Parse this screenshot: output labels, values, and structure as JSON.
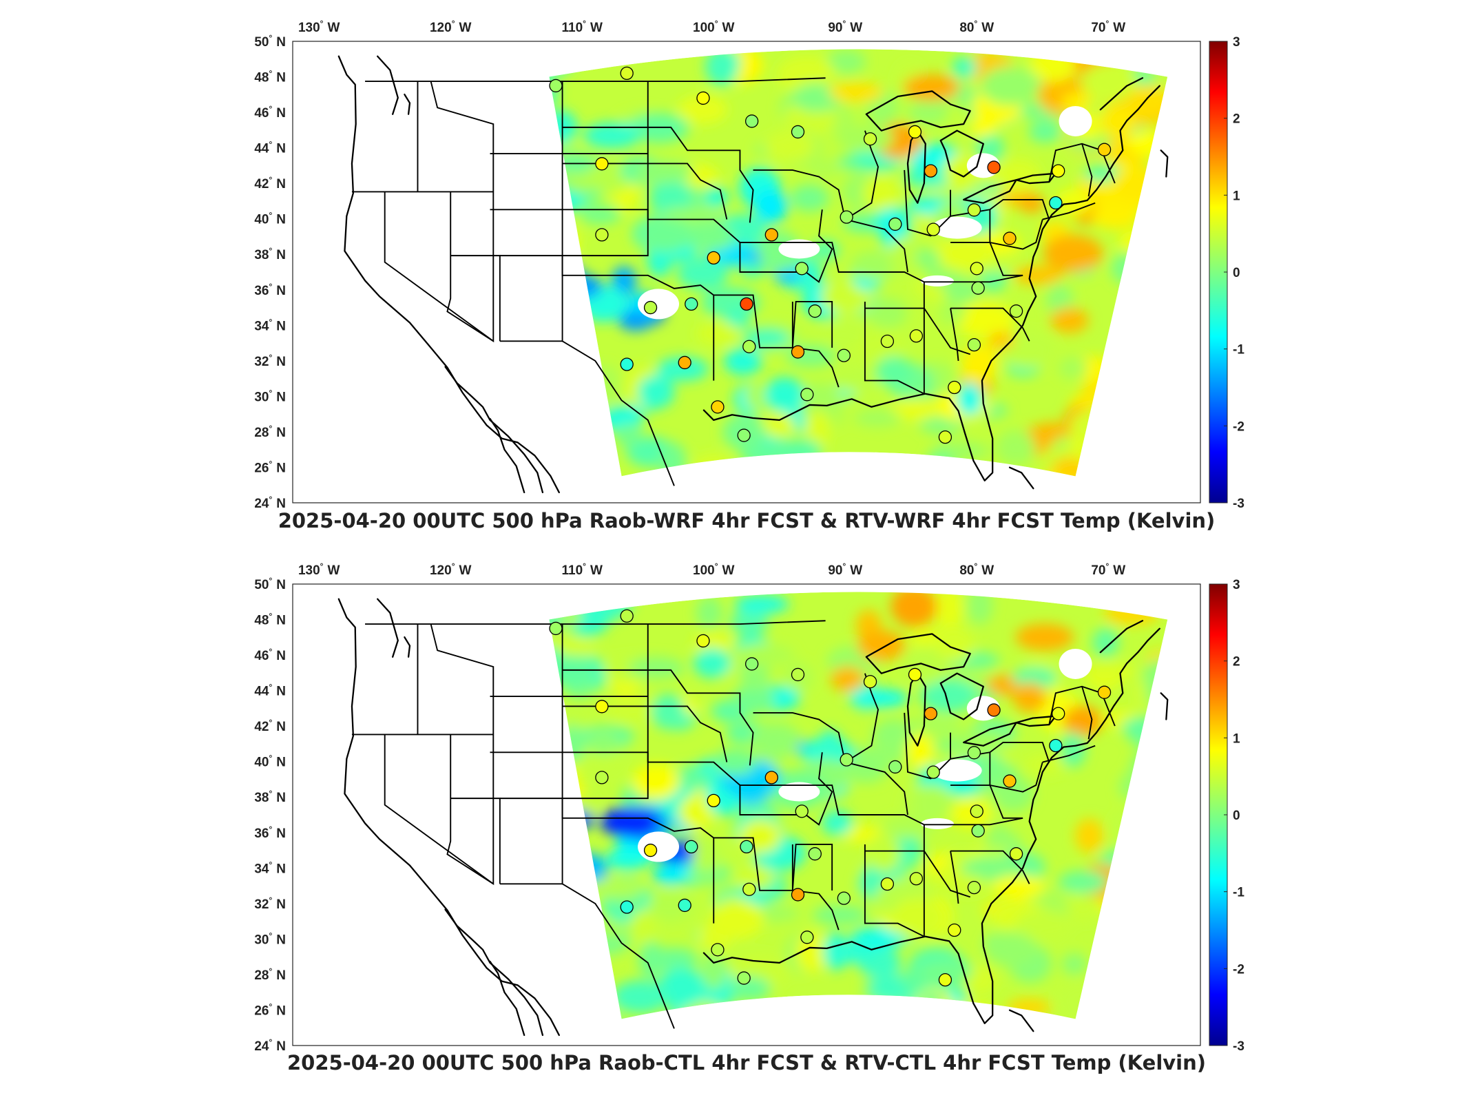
{
  "panels": [
    {
      "title": "2025-04-20 00UTC 500 hPa Raob-WRF 4hr FCST & RTV-WRF 4hr FCST Temp (Kelvin)",
      "stations": [
        {
          "lon": -112.0,
          "lat": 47.5,
          "value": 0.2
        },
        {
          "lon": -106.6,
          "lat": 48.2,
          "value": 0.6
        },
        {
          "lon": -100.8,
          "lat": 46.8,
          "value": 0.8
        },
        {
          "lon": -97.1,
          "lat": 45.5,
          "value": 0.1
        },
        {
          "lon": -93.6,
          "lat": 44.9,
          "value": 0.1
        },
        {
          "lon": -88.1,
          "lat": 44.5,
          "value": 0.5
        },
        {
          "lon": -84.7,
          "lat": 44.9,
          "value": 0.8
        },
        {
          "lon": -83.5,
          "lat": 42.7,
          "value": 1.4
        },
        {
          "lon": -78.7,
          "lat": 42.9,
          "value": 1.8
        },
        {
          "lon": -73.8,
          "lat": 42.7,
          "value": 0.8
        },
        {
          "lon": -70.3,
          "lat": 43.9,
          "value": 1.1
        },
        {
          "lon": -108.5,
          "lat": 43.1,
          "value": 0.9
        },
        {
          "lon": -108.5,
          "lat": 39.1,
          "value": 0.5
        },
        {
          "lon": -104.8,
          "lat": 35.0,
          "value": 0.4
        },
        {
          "lon": -101.7,
          "lat": 35.2,
          "value": -0.3
        },
        {
          "lon": -97.5,
          "lat": 35.2,
          "value": 1.9
        },
        {
          "lon": -97.3,
          "lat": 32.8,
          "value": 0.3
        },
        {
          "lon": -95.6,
          "lat": 39.1,
          "value": 1.3
        },
        {
          "lon": -100.0,
          "lat": 37.8,
          "value": 1.2
        },
        {
          "lon": -93.3,
          "lat": 37.2,
          "value": 0.2
        },
        {
          "lon": -92.3,
          "lat": 34.8,
          "value": 0.2
        },
        {
          "lon": -93.6,
          "lat": 32.5,
          "value": 1.4
        },
        {
          "lon": -89.9,
          "lat": 40.1,
          "value": 0.2
        },
        {
          "lon": -86.2,
          "lat": 39.7,
          "value": 0.1
        },
        {
          "lon": -83.3,
          "lat": 39.4,
          "value": 0.6
        },
        {
          "lon": -80.2,
          "lat": 40.5,
          "value": 0.5
        },
        {
          "lon": -77.5,
          "lat": 38.9,
          "value": 1.2
        },
        {
          "lon": -80.0,
          "lat": 37.2,
          "value": 0.6
        },
        {
          "lon": -79.9,
          "lat": 36.1,
          "value": 0.2
        },
        {
          "lon": -77.0,
          "lat": 34.8,
          "value": 0.4
        },
        {
          "lon": -80.2,
          "lat": 32.9,
          "value": 0.3
        },
        {
          "lon": -84.6,
          "lat": 33.4,
          "value": 0.6
        },
        {
          "lon": -86.8,
          "lat": 33.1,
          "value": 0.5
        },
        {
          "lon": -90.1,
          "lat": 32.3,
          "value": 0.2
        },
        {
          "lon": -92.9,
          "lat": 30.1,
          "value": 0.2
        },
        {
          "lon": -97.7,
          "lat": 27.8,
          "value": 0.1
        },
        {
          "lon": -99.7,
          "lat": 29.4,
          "value": 1.1
        },
        {
          "lon": -102.2,
          "lat": 31.9,
          "value": 1.3
        },
        {
          "lon": -106.6,
          "lat": 31.8,
          "value": -0.6
        },
        {
          "lon": -74.0,
          "lat": 40.9,
          "value": -0.6
        },
        {
          "lon": -81.7,
          "lat": 30.5,
          "value": 0.7
        },
        {
          "lon": -82.4,
          "lat": 27.7,
          "value": 0.6
        }
      ]
    },
    {
      "title": "2025-04-20 00UTC 500 hPa Raob-CTL 4hr FCST & RTV-CTL 4hr FCST Temp (Kelvin)",
      "stations": [
        {
          "lon": -112.0,
          "lat": 47.5,
          "value": 0.2
        },
        {
          "lon": -106.6,
          "lat": 48.2,
          "value": 0.4
        },
        {
          "lon": -100.8,
          "lat": 46.8,
          "value": 0.7
        },
        {
          "lon": -97.1,
          "lat": 45.5,
          "value": 0.1
        },
        {
          "lon": -93.6,
          "lat": 44.9,
          "value": 0.4
        },
        {
          "lon": -88.1,
          "lat": 44.5,
          "value": 0.6
        },
        {
          "lon": -84.7,
          "lat": 44.9,
          "value": 0.8
        },
        {
          "lon": -83.5,
          "lat": 42.7,
          "value": 1.4
        },
        {
          "lon": -78.7,
          "lat": 42.9,
          "value": 1.6
        },
        {
          "lon": -73.8,
          "lat": 42.7,
          "value": 0.7
        },
        {
          "lon": -70.3,
          "lat": 43.9,
          "value": 1.1
        },
        {
          "lon": -108.5,
          "lat": 43.1,
          "value": 0.8
        },
        {
          "lon": -108.5,
          "lat": 39.1,
          "value": 0.4
        },
        {
          "lon": -104.8,
          "lat": 35.0,
          "value": 0.9
        },
        {
          "lon": -101.7,
          "lat": 35.2,
          "value": -0.3
        },
        {
          "lon": -97.5,
          "lat": 35.2,
          "value": -0.2
        },
        {
          "lon": -97.3,
          "lat": 32.8,
          "value": 0.5
        },
        {
          "lon": -95.6,
          "lat": 39.1,
          "value": 1.3
        },
        {
          "lon": -100.0,
          "lat": 37.8,
          "value": 0.8
        },
        {
          "lon": -93.3,
          "lat": 37.2,
          "value": 0.4
        },
        {
          "lon": -92.3,
          "lat": 34.8,
          "value": 0.2
        },
        {
          "lon": -93.6,
          "lat": 32.5,
          "value": 1.4
        },
        {
          "lon": -89.9,
          "lat": 40.1,
          "value": 0.2
        },
        {
          "lon": -86.2,
          "lat": 39.7,
          "value": 0.1
        },
        {
          "lon": -83.3,
          "lat": 39.4,
          "value": 0.3
        },
        {
          "lon": -80.2,
          "lat": 40.5,
          "value": 0.2
        },
        {
          "lon": -77.5,
          "lat": 38.9,
          "value": 1.2
        },
        {
          "lon": -80.0,
          "lat": 37.2,
          "value": 0.5
        },
        {
          "lon": -79.9,
          "lat": 36.1,
          "value": 0.1
        },
        {
          "lon": -77.0,
          "lat": 34.8,
          "value": 0.6
        },
        {
          "lon": -80.2,
          "lat": 32.9,
          "value": 0.4
        },
        {
          "lon": -84.6,
          "lat": 33.4,
          "value": 0.5
        },
        {
          "lon": -86.8,
          "lat": 33.1,
          "value": 0.6
        },
        {
          "lon": -90.1,
          "lat": 32.3,
          "value": 0.2
        },
        {
          "lon": -92.9,
          "lat": 30.1,
          "value": 0.4
        },
        {
          "lon": -97.7,
          "lat": 27.8,
          "value": 0.2
        },
        {
          "lon": -99.7,
          "lat": 29.4,
          "value": 0.4
        },
        {
          "lon": -102.2,
          "lat": 31.9,
          "value": -0.5
        },
        {
          "lon": -106.6,
          "lat": 31.8,
          "value": -0.6
        },
        {
          "lon": -74.0,
          "lat": 40.9,
          "value": -0.6
        },
        {
          "lon": -81.7,
          "lat": 30.5,
          "value": 0.7
        },
        {
          "lon": -82.4,
          "lat": 27.7,
          "value": 0.7
        }
      ]
    }
  ],
  "map": {
    "lon_range": [
      -132,
      -63
    ],
    "lat_range": [
      24,
      50
    ],
    "lon_ticks": [
      {
        "value": -130,
        "deg": "130",
        "hem": "W"
      },
      {
        "value": -120,
        "deg": "120",
        "hem": "W"
      },
      {
        "value": -110,
        "deg": "110",
        "hem": "W"
      },
      {
        "value": -100,
        "deg": "100",
        "hem": "W"
      },
      {
        "value": -90,
        "deg": "90",
        "hem": "W"
      },
      {
        "value": -80,
        "deg": "80",
        "hem": "W"
      },
      {
        "value": -70,
        "deg": "70",
        "hem": "W"
      }
    ],
    "lat_ticks": [
      {
        "value": 50,
        "deg": "50",
        "hem": "N"
      },
      {
        "value": 48,
        "deg": "48",
        "hem": "N"
      },
      {
        "value": 46,
        "deg": "46",
        "hem": "N"
      },
      {
        "value": 44,
        "deg": "44",
        "hem": "N"
      },
      {
        "value": 42,
        "deg": "42",
        "hem": "N"
      },
      {
        "value": 40,
        "deg": "40",
        "hem": "N"
      },
      {
        "value": 38,
        "deg": "38",
        "hem": "N"
      },
      {
        "value": 36,
        "deg": "36",
        "hem": "N"
      },
      {
        "value": 34,
        "deg": "34",
        "hem": "N"
      },
      {
        "value": 32,
        "deg": "32",
        "hem": "N"
      },
      {
        "value": 30,
        "deg": "30",
        "hem": "N"
      },
      {
        "value": 28,
        "deg": "28",
        "hem": "N"
      },
      {
        "value": 26,
        "deg": "26",
        "hem": "N"
      },
      {
        "value": 24,
        "deg": "24",
        "hem": "N"
      }
    ],
    "domain_corners": {
      "top_left": {
        "lon": -112.5,
        "lat": 48.0
      },
      "top_right": {
        "lon": -65.5,
        "lat": 48.0
      },
      "bottom_left": {
        "lon": -107.0,
        "lat": 25.5
      },
      "bottom_right": {
        "lon": -72.5,
        "lat": 25.5
      }
    }
  },
  "colorbar": {
    "range": [
      -3,
      3
    ],
    "tick_labels": [
      "3",
      "2",
      "1",
      "0",
      "-1",
      "-2",
      "-3"
    ],
    "colormap": "jet",
    "colors": [
      "#00008f",
      "#0000ff",
      "#00ffff",
      "#80ff80",
      "#ffff00",
      "#ff0000",
      "#800000"
    ]
  }
}
